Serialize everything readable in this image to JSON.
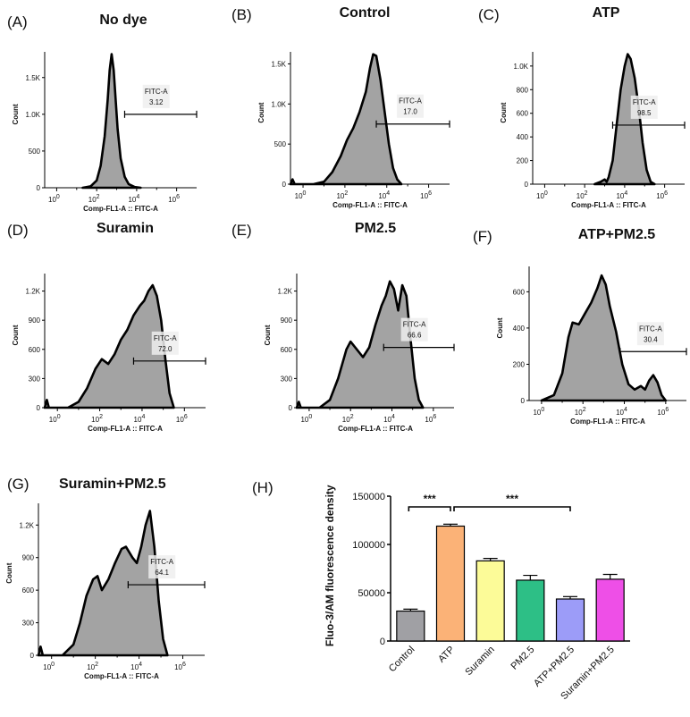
{
  "chart_data": [
    {
      "type": "histogram",
      "panel_label": "(A)",
      "title": "No dye",
      "xlabel": "Comp-FL1-A :: FITC-A",
      "ylabel": "Count",
      "yticks": [
        "0",
        "500",
        "1.0K",
        "1.5K"
      ],
      "ymax": 1850,
      "ytick_values": [
        0,
        500,
        1000,
        1500
      ],
      "xticks": [
        {
          "base": "10",
          "exp": "0",
          "log": 0
        },
        {
          "base": "10",
          "exp": "2",
          "log": 2
        },
        {
          "base": "10",
          "exp": "4",
          "log": 4
        },
        {
          "base": "10",
          "exp": "6",
          "log": 6
        }
      ],
      "xmin_log": -0.6,
      "xmax_log": 7.0,
      "gate": {
        "name": "FITC-A",
        "value": "3.12",
        "start_log": 3.4,
        "end_log": 7.0,
        "y": 1000
      },
      "curve": [
        [
          1.3,
          0
        ],
        [
          1.7,
          20
        ],
        [
          2.0,
          100
        ],
        [
          2.2,
          300
        ],
        [
          2.4,
          700
        ],
        [
          2.55,
          1200
        ],
        [
          2.65,
          1600
        ],
        [
          2.75,
          1820
        ],
        [
          2.85,
          1600
        ],
        [
          2.95,
          1200
        ],
        [
          3.05,
          800
        ],
        [
          3.2,
          400
        ],
        [
          3.4,
          150
        ],
        [
          3.6,
          50
        ],
        [
          3.9,
          10
        ],
        [
          4.2,
          0
        ]
      ]
    },
    {
      "type": "histogram",
      "panel_label": "(B)",
      "title": "Control",
      "xlabel": "Comp-FL1-A :: FITC-A",
      "ylabel": "Count",
      "yticks": [
        "0",
        "500",
        "1.0K",
        "1.5K"
      ],
      "ymax": 1650,
      "ytick_values": [
        0,
        500,
        1000,
        1500
      ],
      "xticks": [
        {
          "base": "10",
          "exp": "0",
          "log": 0
        },
        {
          "base": "10",
          "exp": "2",
          "log": 2
        },
        {
          "base": "10",
          "exp": "4",
          "log": 4
        },
        {
          "base": "10",
          "exp": "6",
          "log": 6
        }
      ],
      "xmin_log": -0.6,
      "xmax_log": 7.0,
      "gate": {
        "name": "FITC-A",
        "value": "17.0",
        "start_log": 3.5,
        "end_log": 7.0,
        "y": 750
      },
      "curve": [
        [
          -0.6,
          0
        ],
        [
          -0.5,
          60
        ],
        [
          -0.4,
          0
        ],
        [
          0.5,
          0
        ],
        [
          1.0,
          30
        ],
        [
          1.4,
          150
        ],
        [
          1.8,
          350
        ],
        [
          2.1,
          550
        ],
        [
          2.4,
          700
        ],
        [
          2.7,
          900
        ],
        [
          3.0,
          1150
        ],
        [
          3.2,
          1450
        ],
        [
          3.35,
          1620
        ],
        [
          3.5,
          1600
        ],
        [
          3.7,
          1300
        ],
        [
          3.9,
          900
        ],
        [
          4.1,
          500
        ],
        [
          4.3,
          200
        ],
        [
          4.5,
          60
        ],
        [
          4.7,
          0
        ]
      ]
    },
    {
      "type": "histogram",
      "panel_label": "(C)",
      "title": "ATP",
      "xlabel": "Comp-FL1-A :: FITC-A",
      "ylabel": "Count",
      "yticks": [
        "0",
        "200",
        "400",
        "600",
        "800",
        "1.0K"
      ],
      "ymax": 1120,
      "ytick_values": [
        0,
        200,
        400,
        600,
        800,
        1000
      ],
      "xticks": [
        {
          "base": "10",
          "exp": "0",
          "log": 0
        },
        {
          "base": "10",
          "exp": "2",
          "log": 2
        },
        {
          "base": "10",
          "exp": "4",
          "log": 4
        },
        {
          "base": "10",
          "exp": "6",
          "log": 6
        }
      ],
      "xmin_log": -0.6,
      "xmax_log": 7.0,
      "gate": {
        "name": "FITC-A",
        "value": "98.5",
        "start_log": 3.4,
        "end_log": 7.0,
        "y": 500
      },
      "curve": [
        [
          2.5,
          0
        ],
        [
          2.8,
          20
        ],
        [
          3.0,
          40
        ],
        [
          3.1,
          20
        ],
        [
          3.2,
          60
        ],
        [
          3.4,
          200
        ],
        [
          3.6,
          500
        ],
        [
          3.8,
          800
        ],
        [
          4.0,
          1000
        ],
        [
          4.15,
          1100
        ],
        [
          4.3,
          1060
        ],
        [
          4.5,
          900
        ],
        [
          4.7,
          650
        ],
        [
          4.9,
          350
        ],
        [
          5.1,
          120
        ],
        [
          5.3,
          20
        ],
        [
          5.5,
          0
        ]
      ]
    },
    {
      "type": "histogram",
      "panel_label": "(D)",
      "title": "Suramin",
      "xlabel": "Comp-FL1-A :: FITC-A",
      "ylabel": "Count",
      "yticks": [
        "0",
        "300",
        "600",
        "900",
        "1.2K"
      ],
      "ymax": 1380,
      "ytick_values": [
        0,
        300,
        600,
        900,
        1200
      ],
      "xticks": [
        {
          "base": "10",
          "exp": "0",
          "log": 0
        },
        {
          "base": "10",
          "exp": "2",
          "log": 2
        },
        {
          "base": "10",
          "exp": "4",
          "log": 4
        },
        {
          "base": "10",
          "exp": "6",
          "log": 6
        }
      ],
      "xmin_log": -0.6,
      "xmax_log": 7.0,
      "gate": {
        "name": "FITC-A",
        "value": "72.0",
        "start_log": 3.6,
        "end_log": 7.0,
        "y": 480
      },
      "curve": [
        [
          -0.6,
          0
        ],
        [
          -0.5,
          80
        ],
        [
          -0.4,
          0
        ],
        [
          0.5,
          0
        ],
        [
          1.0,
          60
        ],
        [
          1.4,
          200
        ],
        [
          1.8,
          400
        ],
        [
          2.1,
          500
        ],
        [
          2.4,
          450
        ],
        [
          2.7,
          550
        ],
        [
          3.0,
          700
        ],
        [
          3.3,
          800
        ],
        [
          3.6,
          950
        ],
        [
          3.9,
          1050
        ],
        [
          4.1,
          1100
        ],
        [
          4.3,
          1200
        ],
        [
          4.5,
          1260
        ],
        [
          4.7,
          1150
        ],
        [
          4.9,
          900
        ],
        [
          5.1,
          500
        ],
        [
          5.3,
          150
        ],
        [
          5.5,
          0
        ]
      ]
    },
    {
      "type": "histogram",
      "panel_label": "(E)",
      "title": "PM2.5",
      "xlabel": "Comp-FL1-A :: FITC-A",
      "ylabel": "Count",
      "yticks": [
        "0",
        "300",
        "600",
        "900",
        "1.2K"
      ],
      "ymax": 1380,
      "ytick_values": [
        0,
        300,
        600,
        900,
        1200
      ],
      "xticks": [
        {
          "base": "10",
          "exp": "0",
          "log": 0
        },
        {
          "base": "10",
          "exp": "2",
          "log": 2
        },
        {
          "base": "10",
          "exp": "4",
          "log": 4
        },
        {
          "base": "10",
          "exp": "6",
          "log": 6
        }
      ],
      "xmin_log": -0.6,
      "xmax_log": 7.0,
      "gate": {
        "name": "FITC-A",
        "value": "66.6",
        "start_log": 3.6,
        "end_log": 7.0,
        "y": 620
      },
      "curve": [
        [
          -0.6,
          0
        ],
        [
          -0.5,
          60
        ],
        [
          -0.4,
          0
        ],
        [
          0.5,
          0
        ],
        [
          1.0,
          80
        ],
        [
          1.4,
          300
        ],
        [
          1.8,
          600
        ],
        [
          2.0,
          680
        ],
        [
          2.3,
          600
        ],
        [
          2.6,
          520
        ],
        [
          2.9,
          620
        ],
        [
          3.2,
          850
        ],
        [
          3.5,
          1050
        ],
        [
          3.7,
          1150
        ],
        [
          3.9,
          1300
        ],
        [
          4.1,
          1220
        ],
        [
          4.3,
          1000
        ],
        [
          4.5,
          1260
        ],
        [
          4.7,
          1150
        ],
        [
          4.9,
          700
        ],
        [
          5.1,
          300
        ],
        [
          5.3,
          80
        ],
        [
          5.5,
          0
        ]
      ]
    },
    {
      "type": "histogram",
      "panel_label": "(F)",
      "title": "ATP+PM2.5",
      "xlabel": "Comp-FL1-A :: FITC-A",
      "ylabel": "Count",
      "yticks": [
        "0",
        "200",
        "400",
        "600"
      ],
      "ymax": 740,
      "ytick_values": [
        0,
        200,
        400,
        600
      ],
      "xticks": [
        {
          "base": "10",
          "exp": "0",
          "log": 0
        },
        {
          "base": "10",
          "exp": "2",
          "log": 2
        },
        {
          "base": "10",
          "exp": "4",
          "log": 4
        },
        {
          "base": "10",
          "exp": "6",
          "log": 6
        }
      ],
      "xmin_log": -0.6,
      "xmax_log": 7.0,
      "gate": {
        "name": "FITC-A",
        "value": "30.4",
        "start_log": 3.8,
        "end_log": 7.0,
        "y": 270
      },
      "curve": [
        [
          0.0,
          0
        ],
        [
          0.6,
          30
        ],
        [
          1.0,
          150
        ],
        [
          1.3,
          350
        ],
        [
          1.5,
          430
        ],
        [
          1.8,
          420
        ],
        [
          2.1,
          480
        ],
        [
          2.4,
          540
        ],
        [
          2.7,
          620
        ],
        [
          2.9,
          690
        ],
        [
          3.1,
          640
        ],
        [
          3.3,
          520
        ],
        [
          3.6,
          380
        ],
        [
          3.9,
          200
        ],
        [
          4.2,
          90
        ],
        [
          4.5,
          60
        ],
        [
          4.8,
          80
        ],
        [
          5.0,
          60
        ],
        [
          5.2,
          110
        ],
        [
          5.4,
          140
        ],
        [
          5.6,
          100
        ],
        [
          5.8,
          30
        ],
        [
          6.0,
          0
        ]
      ]
    },
    {
      "type": "histogram",
      "panel_label": "(G)",
      "title": "Suramin+PM2.5",
      "xlabel": "Comp-FL1-A :: FITC-A",
      "ylabel": "Count",
      "yticks": [
        "0",
        "300",
        "600",
        "900",
        "1.2K"
      ],
      "ymax": 1400,
      "ytick_values": [
        0,
        300,
        600,
        900,
        1200
      ],
      "xticks": [
        {
          "base": "10",
          "exp": "0",
          "log": 0
        },
        {
          "base": "10",
          "exp": "2",
          "log": 2
        },
        {
          "base": "10",
          "exp": "4",
          "log": 4
        },
        {
          "base": "10",
          "exp": "6",
          "log": 6
        }
      ],
      "xmin_log": -0.6,
      "xmax_log": 7.0,
      "gate": {
        "name": "FITC-A",
        "value": "64.1",
        "start_log": 3.5,
        "end_log": 7.0,
        "y": 650
      },
      "curve": [
        [
          -0.6,
          0
        ],
        [
          -0.5,
          80
        ],
        [
          -0.4,
          0
        ],
        [
          0.5,
          0
        ],
        [
          1.0,
          100
        ],
        [
          1.3,
          300
        ],
        [
          1.6,
          550
        ],
        [
          1.9,
          700
        ],
        [
          2.1,
          730
        ],
        [
          2.3,
          600
        ],
        [
          2.6,
          700
        ],
        [
          2.9,
          850
        ],
        [
          3.2,
          980
        ],
        [
          3.4,
          1000
        ],
        [
          3.7,
          900
        ],
        [
          3.9,
          850
        ],
        [
          4.1,
          1000
        ],
        [
          4.3,
          1200
        ],
        [
          4.5,
          1330
        ],
        [
          4.7,
          1000
        ],
        [
          4.9,
          500
        ],
        [
          5.1,
          150
        ],
        [
          5.3,
          0
        ]
      ]
    },
    {
      "type": "bar",
      "panel_label": "(H)",
      "ylabel": "Fluo-3/AM fluorescence density",
      "categories": [
        "Control",
        "ATP",
        "Suramin",
        "PM2.5",
        "ATP+PM2.5",
        "Suramin+PM2.5"
      ],
      "values": [
        31000,
        119000,
        83000,
        63000,
        43500,
        64000
      ],
      "errors": [
        2000,
        2000,
        2500,
        5000,
        2500,
        5000
      ],
      "colors": [
        "#A0A0A4",
        "#FBB277",
        "#FCFB98",
        "#2DBF86",
        "#9C9CF8",
        "#EE4FE7"
      ],
      "ylim": [
        0,
        150000
      ],
      "yticks": [
        0,
        50000,
        100000,
        150000
      ],
      "ytick_labels": [
        "0",
        "50000",
        "100000",
        "150000"
      ],
      "significance": [
        {
          "from": 0,
          "to": 1,
          "label": "***"
        },
        {
          "from": 1,
          "to": 4,
          "label": "***"
        }
      ]
    }
  ]
}
